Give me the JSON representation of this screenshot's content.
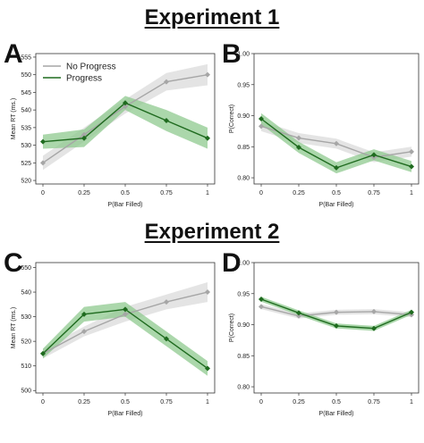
{
  "titles": {
    "exp1": "Experiment 1",
    "exp2": "Experiment 2"
  },
  "colors": {
    "no_progress_line": "#a6a6a6",
    "no_progress_band": "#d8d8d8",
    "progress_line": "#1f6b1f",
    "progress_band": "#8fc98f"
  },
  "chart_data": [
    {
      "panel": "A",
      "type": "line",
      "xlabel": "P(Bar Filled)",
      "ylabel": "Mean RT (ms.)",
      "x": [
        0,
        0.25,
        0.5,
        0.75,
        1
      ],
      "x_tick_labels": [
        "0",
        "0.25",
        "0.5",
        "0.75",
        "1"
      ],
      "ylim": [
        519,
        556
      ],
      "y_ticks": [
        520,
        525,
        530,
        535,
        540,
        545,
        550,
        555
      ],
      "legend": {
        "position": "top-left",
        "entries": [
          "No Progress",
          "Progress"
        ]
      },
      "series": [
        {
          "name": "No Progress",
          "values": [
            525,
            533,
            541,
            548,
            550
          ],
          "band": [
            2,
            2,
            2,
            2.5,
            3
          ]
        },
        {
          "name": "Progress",
          "values": [
            531,
            532,
            542,
            537,
            532
          ],
          "band": [
            2,
            2.5,
            2,
            3,
            3
          ]
        }
      ]
    },
    {
      "panel": "B",
      "type": "line",
      "xlabel": "P(Bar Filled)",
      "ylabel": "P(Correct)",
      "x": [
        0,
        0.25,
        0.5,
        0.75,
        1
      ],
      "x_tick_labels": [
        "0",
        "0.25",
        "0.5",
        "0.75",
        "1"
      ],
      "ylim": [
        0.79,
        1.0
      ],
      "y_ticks": [
        0.8,
        0.85,
        0.9,
        0.95,
        1.0
      ],
      "y_tick_labels": [
        "0.80",
        "0.85",
        "0.90",
        "0.95",
        "1.00"
      ],
      "series": [
        {
          "name": "No Progress",
          "values": [
            0.883,
            0.864,
            0.855,
            0.833,
            0.842
          ],
          "band": [
            0.008,
            0.008,
            0.008,
            0.008,
            0.008
          ]
        },
        {
          "name": "Progress",
          "values": [
            0.895,
            0.849,
            0.816,
            0.837,
            0.818
          ],
          "band": [
            0.009,
            0.009,
            0.009,
            0.009,
            0.009
          ]
        }
      ]
    },
    {
      "panel": "C",
      "type": "line",
      "xlabel": "P(Bar Filled)",
      "ylabel": "Mean RT (ms.)",
      "x": [
        0,
        0.25,
        0.5,
        0.75,
        1
      ],
      "x_tick_labels": [
        "0",
        "0.25",
        "0.5",
        "0.75",
        "1"
      ],
      "ylim": [
        499,
        552
      ],
      "y_ticks": [
        500,
        510,
        520,
        530,
        540,
        550
      ],
      "series": [
        {
          "name": "No Progress",
          "values": [
            515,
            524,
            531,
            536,
            540
          ],
          "band": [
            2,
            2,
            3,
            3,
            4
          ]
        },
        {
          "name": "Progress",
          "values": [
            515,
            531,
            533,
            521,
            509
          ],
          "band": [
            2,
            3,
            3,
            3,
            3
          ]
        }
      ]
    },
    {
      "panel": "D",
      "type": "line",
      "xlabel": "P(Bar Filled)",
      "ylabel": "P(Correct)",
      "x": [
        0,
        0.25,
        0.5,
        0.75,
        1
      ],
      "x_tick_labels": [
        "0",
        "0.25",
        "0.5",
        "0.75",
        "1"
      ],
      "ylim": [
        0.79,
        1.0
      ],
      "y_ticks": [
        0.8,
        0.85,
        0.9,
        0.95,
        1.0
      ],
      "y_tick_labels": [
        "0.80",
        "0.85",
        "0.90",
        "0.95",
        "1.00"
      ],
      "series": [
        {
          "name": "No Progress",
          "values": [
            0.929,
            0.914,
            0.92,
            0.921,
            0.916
          ],
          "band": [
            0.004,
            0.004,
            0.004,
            0.004,
            0.004
          ]
        },
        {
          "name": "Progress",
          "values": [
            0.941,
            0.919,
            0.898,
            0.894,
            0.92
          ],
          "band": [
            0.004,
            0.004,
            0.004,
            0.004,
            0.004
          ]
        }
      ]
    }
  ]
}
